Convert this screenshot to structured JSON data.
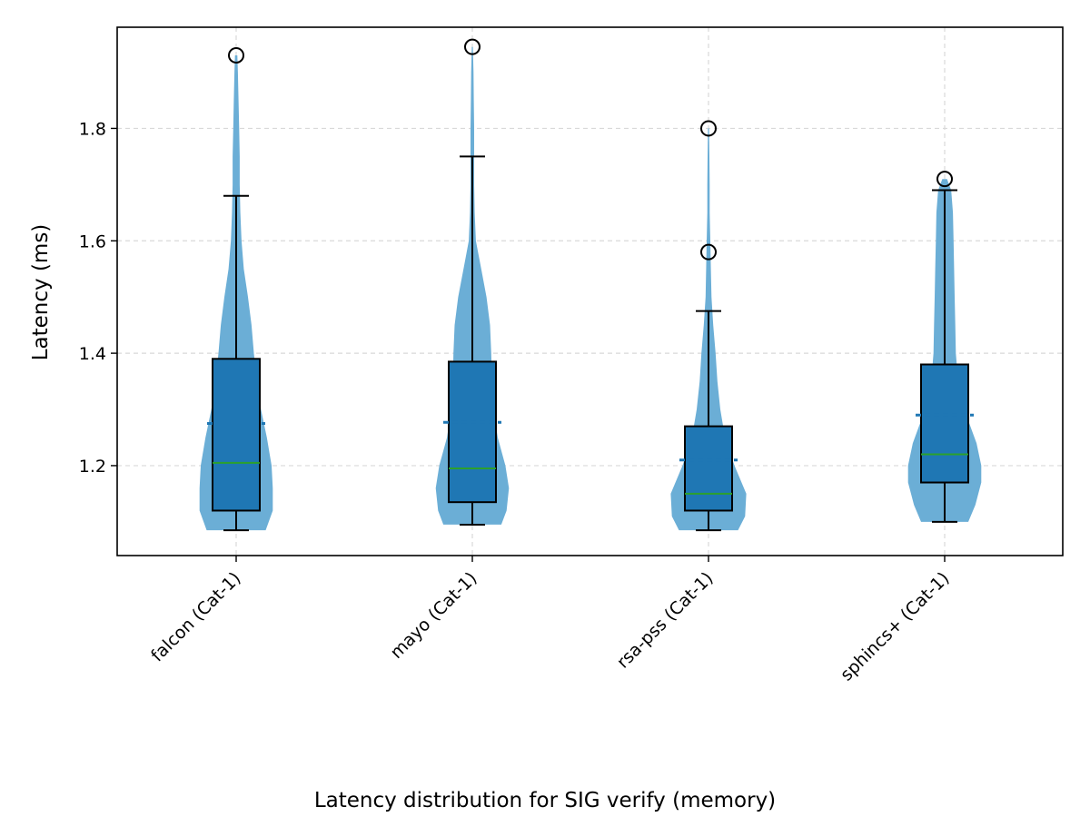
{
  "chart_data": {
    "type": "violin",
    "categories": [
      "falcon (Cat-1)",
      "mayo (Cat-1)",
      "rsa-pss (Cat-1)",
      "sphincs+ (Cat-1)"
    ],
    "ylabel": "Latency (ms)",
    "xlabel": "Latency distribution for SIG verify (memory)",
    "ylim": [
      1.04,
      1.98
    ],
    "yticks": [
      1.2,
      1.4,
      1.6,
      1.8
    ],
    "ytick_labels": [
      "1.2",
      "1.4",
      "1.6",
      "1.8"
    ],
    "grid": true,
    "colors": {
      "violin": "#6baed6",
      "box": "#1f77b4",
      "median": "#2ca02c",
      "mean": "#1f77b4",
      "outline": "#000000"
    },
    "series": [
      {
        "category": "falcon (Cat-1)",
        "min": 1.085,
        "max": 1.93,
        "q1": 1.12,
        "median": 1.205,
        "mean": 1.275,
        "q3": 1.39,
        "whisker_low": 1.085,
        "whisker_high": 1.68,
        "outliers": [
          1.93
        ],
        "density": [
          [
            1.085,
            0.5
          ],
          [
            1.12,
            0.62
          ],
          [
            1.16,
            0.62
          ],
          [
            1.2,
            0.6
          ],
          [
            1.25,
            0.52
          ],
          [
            1.3,
            0.42
          ],
          [
            1.35,
            0.35
          ],
          [
            1.4,
            0.3
          ],
          [
            1.45,
            0.26
          ],
          [
            1.5,
            0.2
          ],
          [
            1.55,
            0.13
          ],
          [
            1.6,
            0.09
          ],
          [
            1.65,
            0.07
          ],
          [
            1.7,
            0.06
          ],
          [
            1.75,
            0.06
          ],
          [
            1.8,
            0.05
          ],
          [
            1.85,
            0.04
          ],
          [
            1.9,
            0.03
          ],
          [
            1.93,
            0.02
          ]
        ]
      },
      {
        "category": "mayo (Cat-1)",
        "min": 1.095,
        "max": 1.945,
        "q1": 1.135,
        "median": 1.195,
        "mean": 1.277,
        "q3": 1.385,
        "whisker_low": 1.095,
        "whisker_high": 1.75,
        "outliers": [
          1.945
        ],
        "density": [
          [
            1.095,
            0.49
          ],
          [
            1.12,
            0.58
          ],
          [
            1.16,
            0.62
          ],
          [
            1.2,
            0.56
          ],
          [
            1.25,
            0.43
          ],
          [
            1.3,
            0.36
          ],
          [
            1.35,
            0.33
          ],
          [
            1.4,
            0.32
          ],
          [
            1.45,
            0.3
          ],
          [
            1.5,
            0.24
          ],
          [
            1.55,
            0.15
          ],
          [
            1.6,
            0.06
          ],
          [
            1.65,
            0.04
          ],
          [
            1.7,
            0.03
          ],
          [
            1.75,
            0.03
          ],
          [
            1.8,
            0.03
          ],
          [
            1.85,
            0.025
          ],
          [
            1.9,
            0.02
          ],
          [
            1.945,
            0.01
          ]
        ]
      },
      {
        "category": "rsa-pss (Cat-1)",
        "min": 1.085,
        "max": 1.8,
        "q1": 1.12,
        "median": 1.15,
        "mean": 1.21,
        "q3": 1.27,
        "whisker_low": 1.085,
        "whisker_high": 1.475,
        "outliers": [
          1.58,
          1.8
        ],
        "density": [
          [
            1.085,
            0.5
          ],
          [
            1.11,
            0.62
          ],
          [
            1.15,
            0.64
          ],
          [
            1.2,
            0.44
          ],
          [
            1.25,
            0.28
          ],
          [
            1.3,
            0.2
          ],
          [
            1.35,
            0.15
          ],
          [
            1.4,
            0.12
          ],
          [
            1.45,
            0.08
          ],
          [
            1.5,
            0.05
          ],
          [
            1.55,
            0.04
          ],
          [
            1.6,
            0.03
          ],
          [
            1.65,
            0.02
          ],
          [
            1.7,
            0.02
          ],
          [
            1.75,
            0.015
          ],
          [
            1.8,
            0.01
          ]
        ]
      },
      {
        "category": "sphincs+ (Cat-1)",
        "min": 1.1,
        "max": 1.71,
        "q1": 1.17,
        "median": 1.22,
        "mean": 1.29,
        "q3": 1.38,
        "whisker_low": 1.1,
        "whisker_high": 1.69,
        "outliers": [
          1.71
        ],
        "density": [
          [
            1.1,
            0.4
          ],
          [
            1.13,
            0.52
          ],
          [
            1.17,
            0.62
          ],
          [
            1.2,
            0.62
          ],
          [
            1.24,
            0.54
          ],
          [
            1.28,
            0.4
          ],
          [
            1.32,
            0.28
          ],
          [
            1.36,
            0.22
          ],
          [
            1.4,
            0.19
          ],
          [
            1.45,
            0.18
          ],
          [
            1.5,
            0.17
          ],
          [
            1.55,
            0.16
          ],
          [
            1.6,
            0.15
          ],
          [
            1.65,
            0.14
          ],
          [
            1.69,
            0.11
          ],
          [
            1.71,
            0.04
          ]
        ]
      }
    ]
  }
}
